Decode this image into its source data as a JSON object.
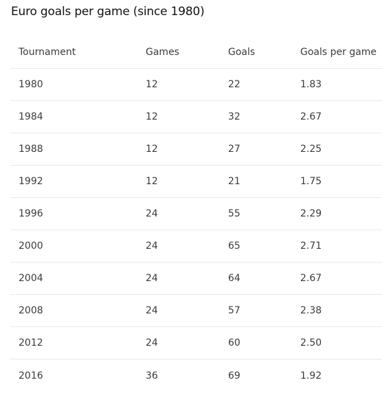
{
  "title": "Euro goals per game (since 1980)",
  "table": {
    "headers": [
      "Tournament",
      "Games",
      "Goals",
      "Goals per game"
    ],
    "rows": [
      [
        "1980",
        "12",
        "22",
        "1.83"
      ],
      [
        "1984",
        "12",
        "32",
        "2.67"
      ],
      [
        "1988",
        "12",
        "27",
        "2.25"
      ],
      [
        "1992",
        "12",
        "21",
        "1.75"
      ],
      [
        "1996",
        "24",
        "55",
        "2.29"
      ],
      [
        "2000",
        "24",
        "65",
        "2.71"
      ],
      [
        "2004",
        "24",
        "64",
        "2.67"
      ],
      [
        "2008",
        "24",
        "57",
        "2.38"
      ],
      [
        "2012",
        "24",
        "60",
        "2.50"
      ],
      [
        "2016",
        "36",
        "69",
        "1.92"
      ]
    ]
  }
}
